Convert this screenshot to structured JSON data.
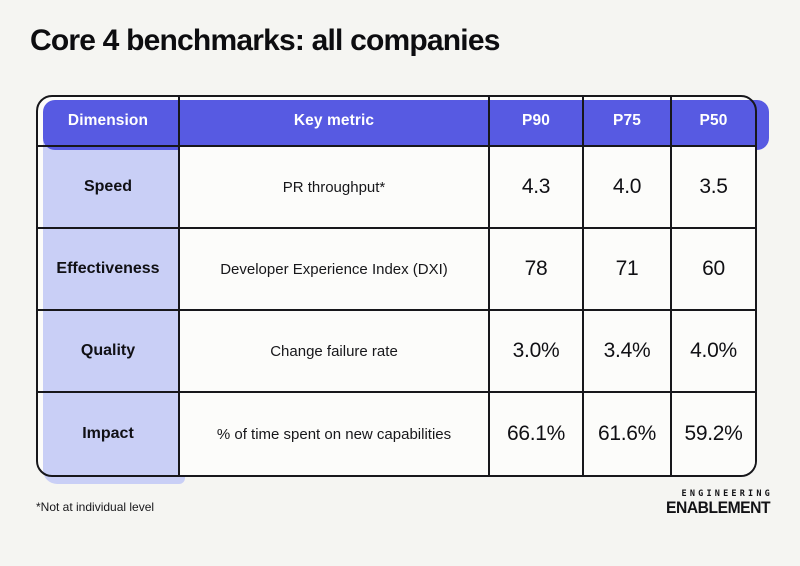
{
  "page": {
    "title": "Core 4 benchmarks: all companies",
    "footnote": "*Not at individual level"
  },
  "logo": {
    "line1": "ENGINEERING",
    "line2": "ENABLEMENT"
  },
  "colors": {
    "header_bg": "#575AE2",
    "dimension_bg": "#C9CFF6",
    "border": "#17171B",
    "cell_bg": "#FCFCFA",
    "page_bg": "#F5F5F2",
    "header_text": "#FFFFFF"
  },
  "chart_data": {
    "type": "table",
    "title": "Core 4 benchmarks: all companies",
    "columns": [
      "Dimension",
      "Key metric",
      "P90",
      "P75",
      "P50"
    ],
    "rows": [
      [
        "Speed",
        "PR throughput*",
        "4.3",
        "4.0",
        "3.5"
      ],
      [
        "Effectiveness",
        "Developer Experience Index (DXI)",
        "78",
        "71",
        "60"
      ],
      [
        "Quality",
        "Change failure rate",
        "3.0%",
        "3.4%",
        "4.0%"
      ],
      [
        "Impact",
        "% of time spent on new capabilities",
        "66.1%",
        "61.6%",
        "59.2%"
      ]
    ]
  }
}
